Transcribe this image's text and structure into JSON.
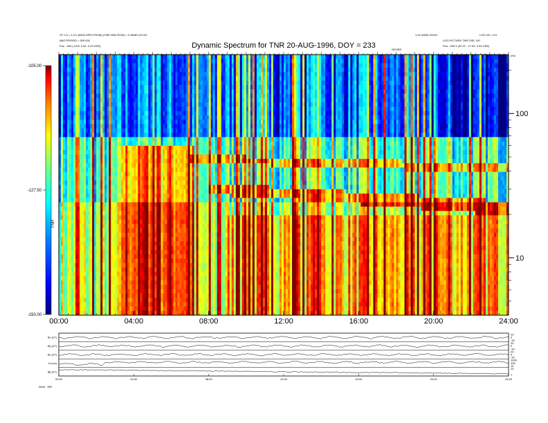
{
  "header": {
    "top_left_1": "CF 0.0 = 1.0 0 (0000 SPECTRUM) (TNR 0000 ROW) = 0 WIND 0/0 0/0",
    "top_left_2": "ABG PERIOD = 300.000",
    "top_left_3": "Pos.   -333 (-3.63, 0.82, 0.49 GSE)",
    "top_right_1": "1.10 WIND 20/0/0",
    "top_right_2": "LOG PICTURE TNR GSE, 0/0",
    "top_right_3": "Pos.   -339.3 (32.07, -17.09, 0.34 GSE)",
    "top_right_mark": "LOG 0/0 = 0/1",
    "marker_label": "GEOEE",
    "title": "Dynamic Spectrum for TNR 20-AUG-1996, DOY = 233"
  },
  "chart_data": [
    {
      "type": "heatmap",
      "title": "Dynamic Spectrum for TNR 20-AUG-1996, DOY = 233",
      "x_ticks": [
        "00:00",
        "04:00",
        "08:00",
        "12:00",
        "16:00",
        "20:00",
        "24:00"
      ],
      "x_range_hours": [
        0,
        24
      ],
      "y_scale": "log",
      "y_range_khz": [
        4,
        256
      ],
      "y_tick_labels": [
        "100",
        "10"
      ],
      "y_tick_values": [
        100,
        10
      ],
      "y_unit": "kHz",
      "colorbar": {
        "ticks": [
          "-105.00",
          "-127.50",
          "-150.00"
        ],
        "range": [
          -150,
          -105
        ],
        "label": "TNR"
      },
      "colormap": [
        "#000080",
        "#0000ff",
        "#0080ff",
        "#00ffff",
        "#80ff80",
        "#ffff00",
        "#ff8000",
        "#ff0000",
        "#800000"
      ]
    },
    {
      "type": "line",
      "panels": [
        {
          "label": "Bx (nT)",
          "ticks": [
            "20",
            "0",
            "-20"
          ]
        },
        {
          "label": "By (nT)",
          "ticks": [
            "20",
            "0",
            "-20"
          ]
        },
        {
          "label": "Bz (nT)",
          "ticks": [
            "20",
            "0",
            "-20"
          ]
        },
        {
          "label": "N (/cc)",
          "ticks": [
            "1000",
            "100",
            "10"
          ]
        },
        {
          "label": "|B| (nT)",
          "ticks": [
            "10",
            "1"
          ]
        }
      ],
      "x_ticks": [
        "00:00",
        "04:00",
        "08:00",
        "12:00",
        "16:00",
        "20:00",
        "24:00"
      ],
      "footer_label": "Wind  . MFI"
    }
  ]
}
